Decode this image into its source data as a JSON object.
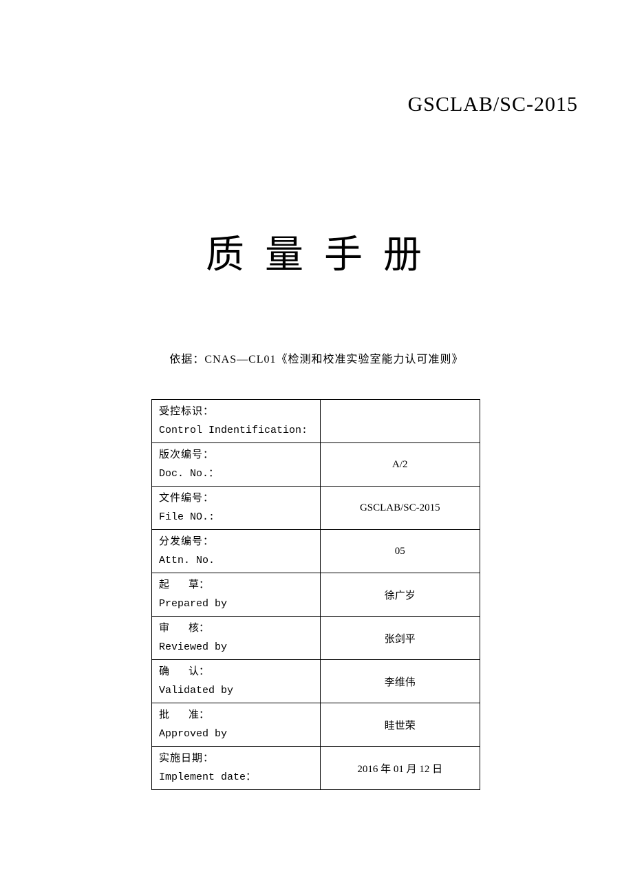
{
  "header": {
    "code": "GSCLAB/SC-2015"
  },
  "title": "质 量 手 册",
  "subtitle": "依据：CNAS—CL01《检测和校准实验室能力认可准则》",
  "table": {
    "rows": [
      {
        "label_cn": "受控标识：",
        "label_en": "Control Indentification:",
        "value": ""
      },
      {
        "label_cn": "版次编号：",
        "label_en": "Doc. No.：",
        "value": "A/2"
      },
      {
        "label_cn": "文件编号：",
        "label_en": "File  NO.:",
        "value": "GSCLAB/SC-2015"
      },
      {
        "label_cn": "分发编号：",
        "label_en": "Attn. No.",
        "value": "05"
      },
      {
        "label_cn_ch1": "起",
        "label_cn_ch2": "草：",
        "label_en": "Prepared by",
        "value": "徐广岁",
        "spaced": true
      },
      {
        "label_cn_ch1": "审",
        "label_cn_ch2": "核：",
        "label_en": "Reviewed by",
        "value": "张剑平",
        "spaced": true
      },
      {
        "label_cn_ch1": "确",
        "label_cn_ch2": "认：",
        "label_en": "Validated by",
        "value": "李维伟",
        "spaced": true
      },
      {
        "label_cn_ch1": "批",
        "label_cn_ch2": "准：",
        "label_en": "Approved by",
        "value": "眭世荣",
        "spaced": true
      },
      {
        "label_cn": "实施日期：",
        "label_en": "Implement date：",
        "value": "2016 年 01 月 12 日"
      }
    ]
  },
  "colors": {
    "background": "#ffffff",
    "text": "#000000",
    "border": "#000000"
  }
}
